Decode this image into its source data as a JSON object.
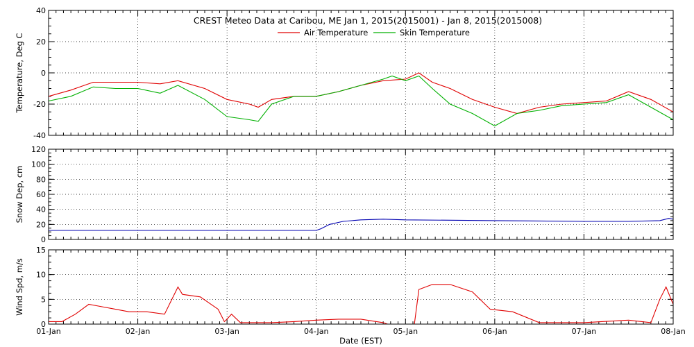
{
  "chart_data": {
    "type": "line",
    "title": "CREST Meteo Data at Caribou, ME   Jan  1, 2015(2015001) - Jan  8, 2015(2015008)",
    "xlabel": "Date (EST)",
    "x_ticks": [
      "01-Jan",
      "02-Jan",
      "03-Jan",
      "04-Jan",
      "05-Jan",
      "06-Jan",
      "07-Jan",
      "08-Jan"
    ],
    "x_range": [
      "01-Jan 00:00",
      "08-Jan 00:00"
    ],
    "grid": true,
    "colors": {
      "red": "#e00000",
      "green": "#00b000",
      "blue": "#0000b0"
    },
    "panels": [
      {
        "id": "temperature",
        "ylabel": "Temperature, Deg C",
        "ylim": [
          -40,
          40
        ],
        "yticks": [
          -40,
          -20,
          0,
          20,
          40
        ],
        "legend_position": "top-center",
        "series": [
          {
            "name": "Air Temperature",
            "color": "#e00000",
            "x_days": [
              0,
              0.25,
              0.5,
              0.75,
              1.0,
              1.25,
              1.45,
              1.75,
              2.0,
              2.25,
              2.35,
              2.5,
              2.75,
              3.0,
              3.25,
              3.5,
              3.75,
              4.0,
              4.15,
              4.3,
              4.5,
              4.75,
              5.0,
              5.25,
              5.5,
              5.75,
              6.0,
              6.25,
              6.5,
              6.75,
              7.0
            ],
            "values": [
              -15,
              -11,
              -6,
              -6,
              -6,
              -7,
              -5,
              -10,
              -17,
              -20,
              -22,
              -17,
              -15,
              -15,
              -12,
              -8,
              -5,
              -4,
              0,
              -6,
              -10,
              -17,
              -22,
              -26,
              -22,
              -20,
              -19,
              -18,
              -12,
              -17,
              -25
            ]
          },
          {
            "name": "Skin Temperature",
            "color": "#00b000",
            "x_days": [
              0,
              0.25,
              0.5,
              0.75,
              1.0,
              1.25,
              1.45,
              1.75,
              2.0,
              2.25,
              2.35,
              2.5,
              2.75,
              3.0,
              3.25,
              3.5,
              3.75,
              3.85,
              4.0,
              4.15,
              4.3,
              4.5,
              4.75,
              5.0,
              5.25,
              5.5,
              5.75,
              6.0,
              6.25,
              6.5,
              6.75,
              7.0
            ],
            "values": [
              -18,
              -15,
              -9,
              -10,
              -10,
              -13,
              -8,
              -17,
              -28,
              -30,
              -31,
              -20,
              -15,
              -15,
              -12,
              -8,
              -4,
              -2,
              -5,
              -2,
              -10,
              -20,
              -26,
              -34,
              -26,
              -24,
              -21,
              -20,
              -19,
              -14,
              -22,
              -30
            ]
          }
        ]
      },
      {
        "id": "snow-depth",
        "ylabel": "Snow Dep, cm",
        "ylim": [
          0,
          120
        ],
        "yticks": [
          0,
          20,
          40,
          60,
          80,
          100,
          120
        ],
        "series": [
          {
            "name": "",
            "color": "#0000b0",
            "x_days": [
              0,
              1.0,
              2.0,
              3.0,
              3.05,
              3.15,
              3.3,
              3.5,
              3.75,
              4.0,
              5.0,
              6.0,
              6.5,
              6.85,
              6.95,
              7.0
            ],
            "values": [
              12,
              12,
              12,
              12,
              14,
              20,
              24,
              26,
              27,
              26,
              25,
              24,
              24,
              25,
              28,
              27
            ]
          }
        ]
      },
      {
        "id": "wind-speed",
        "ylabel": "Wind Spd, m/s",
        "ylim": [
          0,
          15
        ],
        "yticks": [
          0,
          5,
          10,
          15
        ],
        "series": [
          {
            "name": "",
            "color": "#e00000",
            "x_days": [
              0,
              0.15,
              0.3,
              0.45,
              0.6,
              0.75,
              0.9,
              1.1,
              1.3,
              1.45,
              1.5,
              1.7,
              1.9,
              1.97,
              2.0,
              2.05,
              2.15,
              2.3,
              2.5,
              2.75,
              3.0,
              3.25,
              3.5,
              3.75,
              3.8,
              3.95,
              4.0,
              4.1,
              4.15,
              4.3,
              4.5,
              4.75,
              4.95,
              5.2,
              5.5,
              5.75,
              6.0,
              6.2,
              6.5,
              6.75,
              6.85,
              6.92,
              7.0
            ],
            "values": [
              0.5,
              0.5,
              2,
              4,
              3.5,
              3,
              2.5,
              2.5,
              2,
              7.5,
              6,
              5.5,
              3,
              0.5,
              1,
              2,
              0.3,
              0.3,
              0.3,
              0.5,
              0.8,
              1,
              1,
              0.3,
              0,
              0,
              0,
              0,
              7,
              8,
              8,
              6.5,
              3,
              2.5,
              0.3,
              0.3,
              0.3,
              0.5,
              0.8,
              0.3,
              5,
              7.5,
              4
            ]
          }
        ]
      }
    ]
  }
}
